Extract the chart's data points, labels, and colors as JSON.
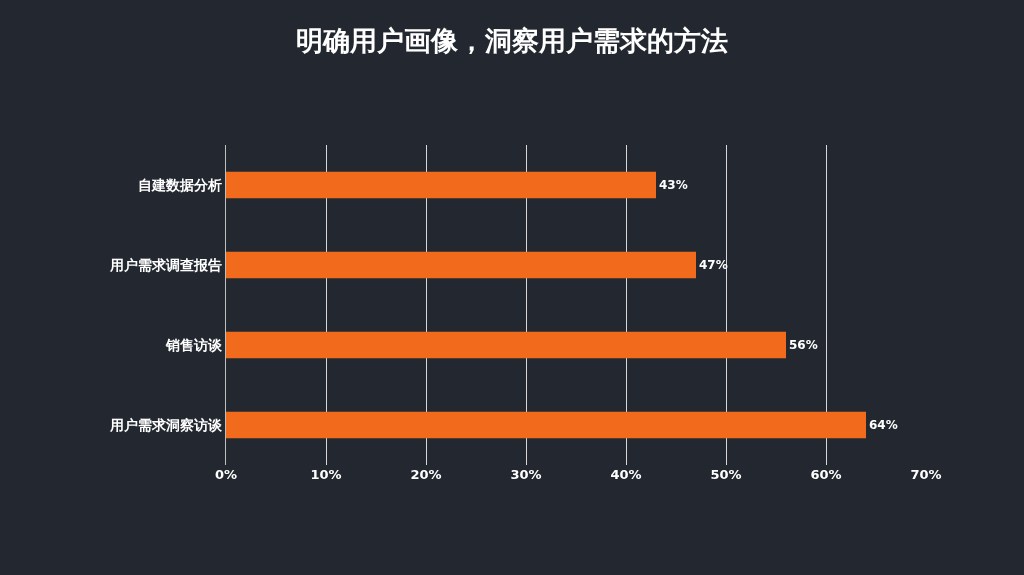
{
  "chart_data": {
    "type": "bar",
    "orientation": "horizontal",
    "title": "明确用户画像，洞察用户需求的方法",
    "categories": [
      "自建数据分析",
      "用户需求调查报告",
      "销售访谈",
      "用户需求洞察访谈"
    ],
    "values": [
      43,
      47,
      56,
      64
    ],
    "value_labels": [
      "43%",
      "47%",
      "56%",
      "64%"
    ],
    "color": "#f26b1d",
    "xlim": [
      0,
      70
    ],
    "xticks": [
      {
        "value": 0,
        "label": "0%"
      },
      {
        "value": 10,
        "label": "10%"
      },
      {
        "value": 20,
        "label": "20%"
      },
      {
        "value": 30,
        "label": "30%"
      },
      {
        "value": 40,
        "label": "40%"
      },
      {
        "value": 50,
        "label": "50%"
      },
      {
        "value": 60,
        "label": "60%"
      },
      {
        "value": 70,
        "label": "70%"
      }
    ],
    "grid": "x"
  }
}
